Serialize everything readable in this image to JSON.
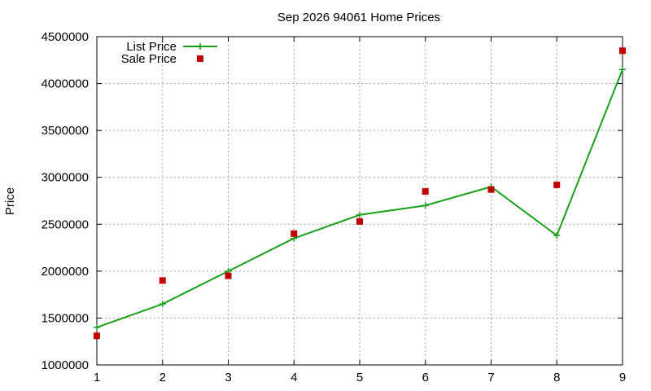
{
  "chart_data": {
    "type": "line",
    "title": "Sep 2026 94061 Home Prices",
    "xlabel": "",
    "ylabel": "Price",
    "xlim": [
      1,
      9
    ],
    "ylim": [
      1000000,
      4500000
    ],
    "x_ticks": [
      "1",
      "2",
      "3",
      "4",
      "5",
      "6",
      "7",
      "8",
      "9"
    ],
    "y_ticks": [
      "1000000",
      "1500000",
      "2000000",
      "2500000",
      "3000000",
      "3500000",
      "4000000",
      "4500000"
    ],
    "grid": true,
    "legend_position": "top-left",
    "x": [
      1,
      2,
      3,
      4,
      5,
      6,
      7,
      8,
      9
    ],
    "series": [
      {
        "name": "List Price",
        "style": "linespoints",
        "color": "#1a9f1a",
        "values": [
          1400000,
          1650000,
          2000000,
          2350000,
          2600000,
          2700000,
          2900000,
          2380000,
          4150000
        ]
      },
      {
        "name": "Sale Price",
        "style": "points",
        "color": "#c00000",
        "values": [
          1310000,
          1900000,
          1950000,
          2400000,
          2530000,
          2850000,
          2870000,
          2920000,
          4350000
        ]
      }
    ]
  }
}
